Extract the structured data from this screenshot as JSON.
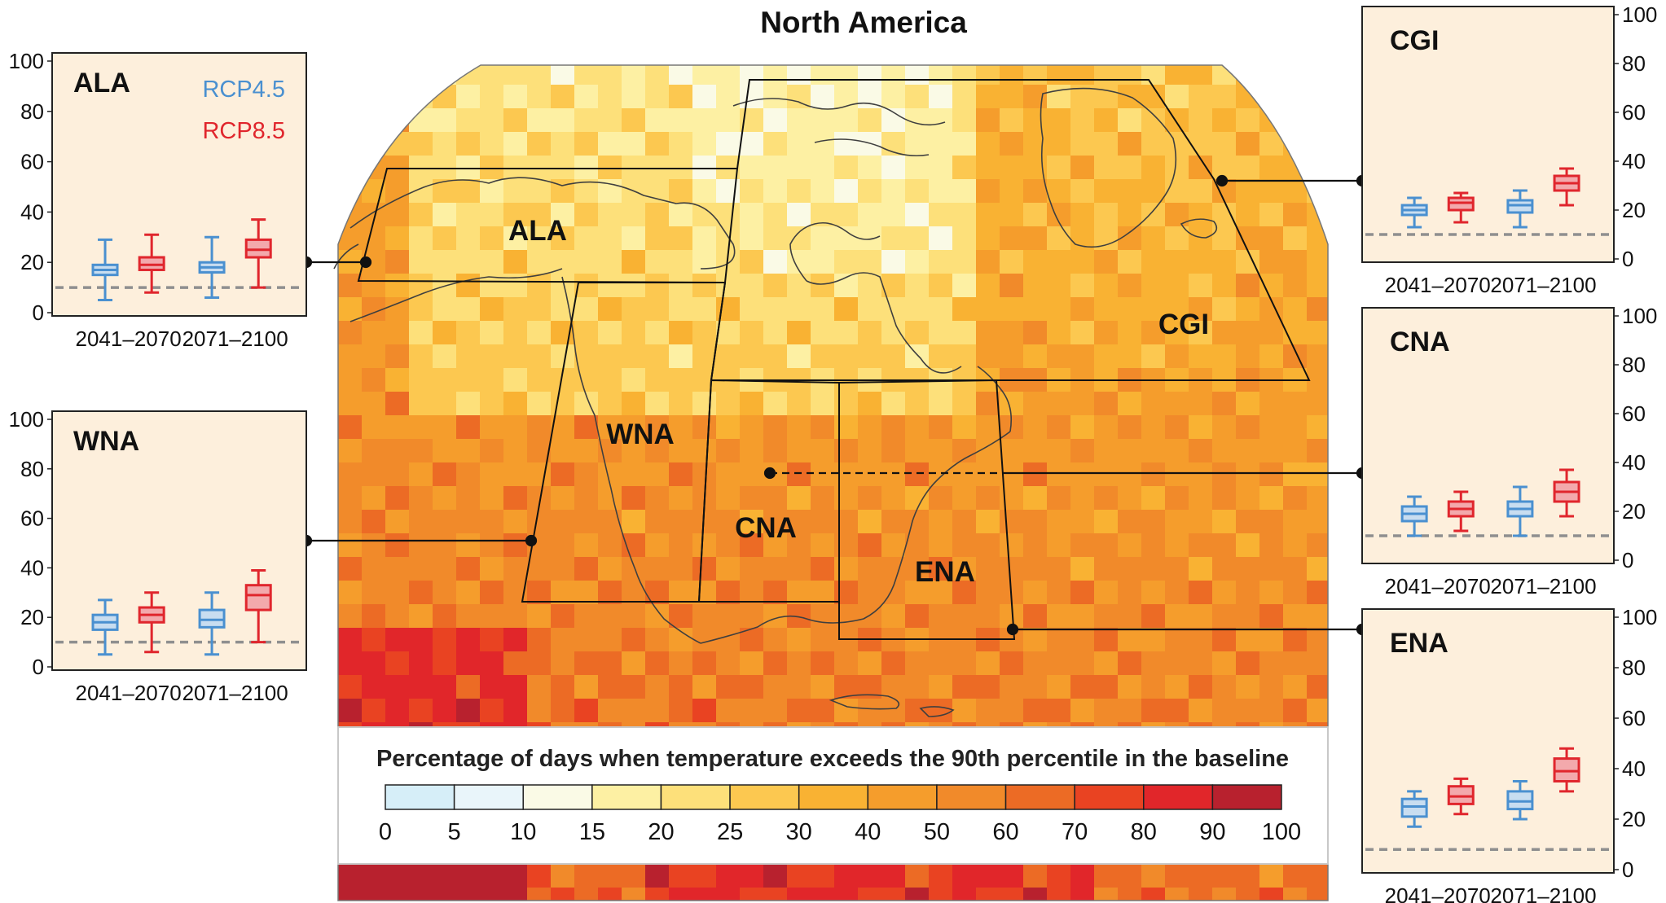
{
  "title": "North America",
  "legend": {
    "title": "Percentage of days when temperature exceeds the 90th percentile in the baseline",
    "ticks": [
      "0",
      "5",
      "10",
      "15",
      "20",
      "25",
      "30",
      "40",
      "50",
      "60",
      "70",
      "80",
      "90",
      "100"
    ],
    "colors": [
      "#d6eef8",
      "#e9f5fa",
      "#fafae6",
      "#fdf0a3",
      "#fde07a",
      "#fcc850",
      "#f9b233",
      "#f59d2c",
      "#f18a2a",
      "#ec6b25",
      "#e94322",
      "#e1262a",
      "#b8212e"
    ]
  },
  "map": {
    "regions": [
      {
        "code": "ALA",
        "label": "ALA"
      },
      {
        "code": "CGI",
        "label": "CGI"
      },
      {
        "code": "WNA",
        "label": "WNA"
      },
      {
        "code": "CNA",
        "label": "CNA"
      },
      {
        "code": "ENA",
        "label": "ENA"
      }
    ]
  },
  "scenarios": [
    {
      "name": "RCP4.5",
      "color": "#4a90d0",
      "fill": "#c8ddf0"
    },
    {
      "name": "RCP8.5",
      "color": "#e0262d",
      "fill": "#f3a9ac"
    }
  ],
  "periods": [
    "2041–2070",
    "2071–2100"
  ],
  "y_ticks": [
    "0",
    "20",
    "40",
    "60",
    "80",
    "100"
  ],
  "chart_data": [
    {
      "type": "box",
      "region": "ALA",
      "ylim": [
        0,
        100
      ],
      "baseline": 10,
      "show_legend": true,
      "categories": [
        "2041–2070",
        "2071–2100"
      ],
      "series": [
        {
          "name": "RCP4.5",
          "boxes": [
            {
              "min": 5,
              "q1": 15,
              "median": 17,
              "q3": 19,
              "max": 29
            },
            {
              "min": 6,
              "q1": 16,
              "median": 18,
              "q3": 20,
              "max": 30
            }
          ]
        },
        {
          "name": "RCP8.5",
          "boxes": [
            {
              "min": 8,
              "q1": 17,
              "median": 19,
              "q3": 22,
              "max": 31
            },
            {
              "min": 10,
              "q1": 22,
              "median": 25,
              "q3": 29,
              "max": 37
            }
          ]
        }
      ]
    },
    {
      "type": "box",
      "region": "WNA",
      "ylim": [
        0,
        100
      ],
      "baseline": 10,
      "show_legend": false,
      "categories": [
        "2041–2070",
        "2071–2100"
      ],
      "series": [
        {
          "name": "RCP4.5",
          "boxes": [
            {
              "min": 5,
              "q1": 15,
              "median": 18,
              "q3": 21,
              "max": 27
            },
            {
              "min": 5,
              "q1": 16,
              "median": 19,
              "q3": 23,
              "max": 30
            }
          ]
        },
        {
          "name": "RCP8.5",
          "boxes": [
            {
              "min": 6,
              "q1": 18,
              "median": 21,
              "q3": 24,
              "max": 30
            },
            {
              "min": 10,
              "q1": 23,
              "median": 29,
              "q3": 33,
              "max": 39
            }
          ]
        }
      ]
    },
    {
      "type": "box",
      "region": "CGI",
      "ylim": [
        0,
        100
      ],
      "baseline": 10,
      "show_legend": false,
      "categories": [
        "2041–2070",
        "2071–2100"
      ],
      "series": [
        {
          "name": "RCP4.5",
          "boxes": [
            {
              "min": 13,
              "q1": 18,
              "median": 20,
              "q3": 22,
              "max": 25
            },
            {
              "min": 13,
              "q1": 19,
              "median": 22,
              "q3": 24,
              "max": 28
            }
          ]
        },
        {
          "name": "RCP8.5",
          "boxes": [
            {
              "min": 15,
              "q1": 20,
              "median": 23,
              "q3": 25,
              "max": 27
            },
            {
              "min": 22,
              "q1": 28,
              "median": 31,
              "q3": 34,
              "max": 37
            }
          ]
        }
      ]
    },
    {
      "type": "box",
      "region": "CNA",
      "ylim": [
        0,
        100
      ],
      "baseline": 10,
      "show_legend": false,
      "categories": [
        "2041–2070",
        "2071–2100"
      ],
      "series": [
        {
          "name": "RCP4.5",
          "boxes": [
            {
              "min": 10,
              "q1": 16,
              "median": 19,
              "q3": 22,
              "max": 26
            },
            {
              "min": 10,
              "q1": 18,
              "median": 21,
              "q3": 24,
              "max": 30
            }
          ]
        },
        {
          "name": "RCP8.5",
          "boxes": [
            {
              "min": 12,
              "q1": 18,
              "median": 21,
              "q3": 24,
              "max": 28
            },
            {
              "min": 18,
              "q1": 24,
              "median": 28,
              "q3": 32,
              "max": 37
            }
          ]
        }
      ]
    },
    {
      "type": "box",
      "region": "ENA",
      "ylim": [
        0,
        100
      ],
      "baseline": 8,
      "show_legend": false,
      "categories": [
        "2041–2070",
        "2071–2100"
      ],
      "series": [
        {
          "name": "RCP4.5",
          "boxes": [
            {
              "min": 17,
              "q1": 21,
              "median": 25,
              "q3": 28,
              "max": 31
            },
            {
              "min": 20,
              "q1": 24,
              "median": 27,
              "q3": 31,
              "max": 35
            }
          ]
        },
        {
          "name": "RCP8.5",
          "boxes": [
            {
              "min": 22,
              "q1": 26,
              "median": 29,
              "q3": 33,
              "max": 36
            },
            {
              "min": 31,
              "q1": 35,
              "median": 39,
              "q3": 44,
              "max": 48
            }
          ]
        }
      ]
    }
  ]
}
